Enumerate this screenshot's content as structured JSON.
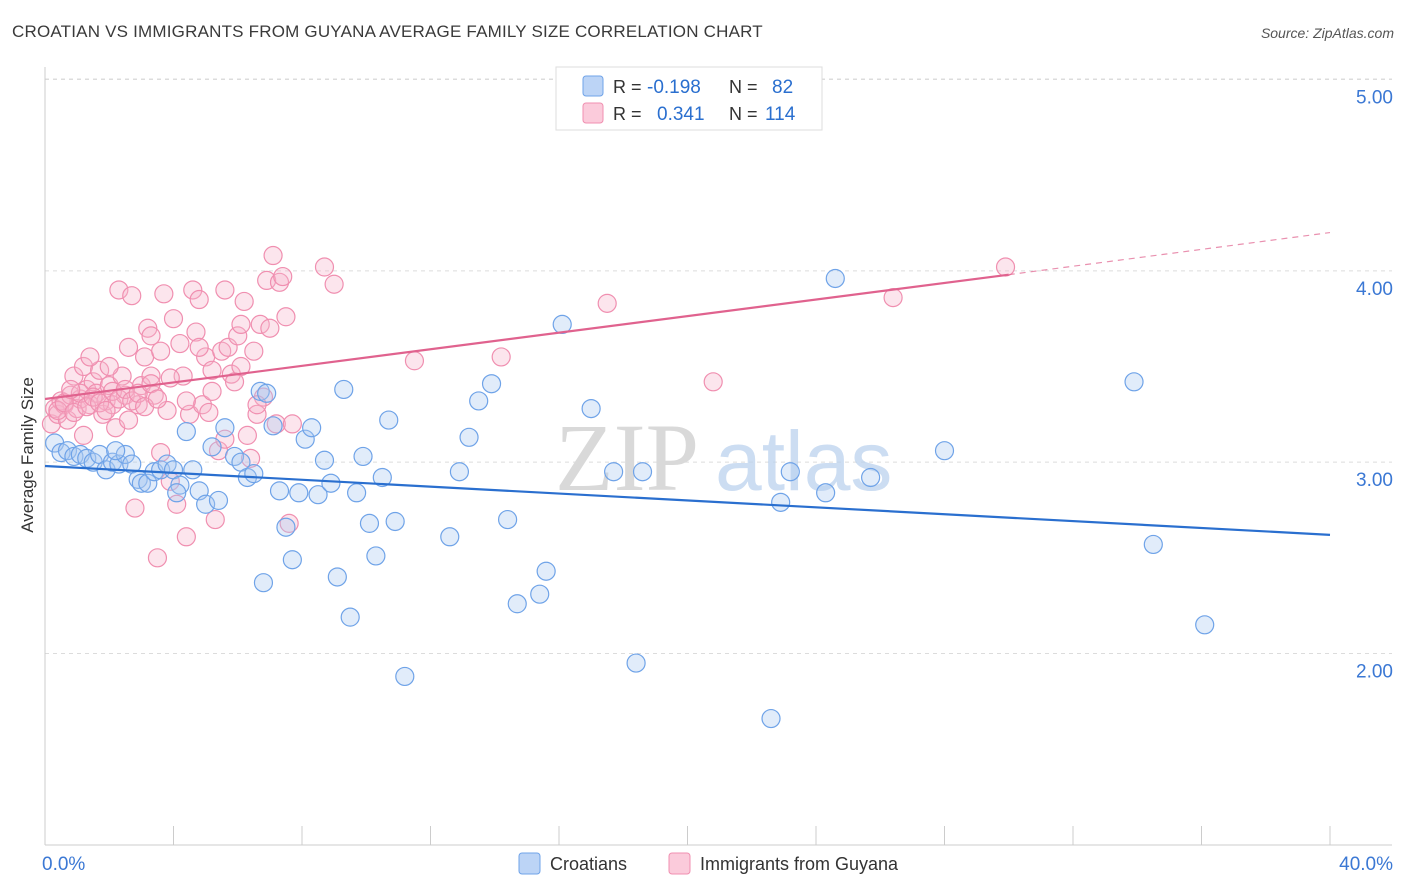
{
  "title": "CROATIAN VS IMMIGRANTS FROM GUYANA AVERAGE FAMILY SIZE CORRELATION CHART",
  "source": "Source: ZipAtlas.com",
  "watermark": {
    "zip": "ZIP",
    "atlas": "atlas"
  },
  "legend_box": {
    "rows": [
      {
        "r_label": "R = ",
        "r_value": "-0.198",
        "n_label": "N = ",
        "n_value": "82",
        "color": "#6fa3e8"
      },
      {
        "r_label": "R = ",
        "r_value": "0.341",
        "n_label": "N = ",
        "n_value": "114",
        "color": "#f08fb0"
      }
    ]
  },
  "chart_data": {
    "type": "scatter",
    "title": "CROATIAN VS IMMIGRANTS FROM GUYANA AVERAGE FAMILY SIZE CORRELATION CHART",
    "xlabel": "",
    "ylabel": "Average Family Size",
    "xlim": [
      0,
      40
    ],
    "ylim": [
      1.0,
      5.15
    ],
    "x_tick_labels": [
      "0.0%",
      "40.0%"
    ],
    "y_ticks": [
      2.0,
      3.0,
      4.0,
      5.0
    ],
    "y_tick_labels": [
      "2.00",
      "3.00",
      "4.00",
      "5.00"
    ],
    "grid": "horizontal dashed",
    "legend_position": "bottom",
    "series": [
      {
        "name": "Croatians",
        "color": "#6fa3e8",
        "line_color": "#2a6fcf",
        "trend": {
          "x": [
            0,
            40
          ],
          "y": [
            2.98,
            2.62
          ]
        },
        "points": [
          [
            0.3,
            3.1
          ],
          [
            0.5,
            3.05
          ],
          [
            0.7,
            3.06
          ],
          [
            0.9,
            3.03
          ],
          [
            1.1,
            3.04
          ],
          [
            1.3,
            3.02
          ],
          [
            1.5,
            3.0
          ],
          [
            1.7,
            3.04
          ],
          [
            1.9,
            2.96
          ],
          [
            2.1,
            3.0
          ],
          [
            2.3,
            2.99
          ],
          [
            2.5,
            3.04
          ],
          [
            2.7,
            2.99
          ],
          [
            2.9,
            2.91
          ],
          [
            3.0,
            2.89
          ],
          [
            3.2,
            2.89
          ],
          [
            3.4,
            2.95
          ],
          [
            3.6,
            2.96
          ],
          [
            3.8,
            2.99
          ],
          [
            4.0,
            2.96
          ],
          [
            4.2,
            2.88
          ],
          [
            4.4,
            3.16
          ],
          [
            4.6,
            2.96
          ],
          [
            4.8,
            2.85
          ],
          [
            5.0,
            2.78
          ],
          [
            5.2,
            3.08
          ],
          [
            5.4,
            2.8
          ],
          [
            5.6,
            3.18
          ],
          [
            5.9,
            3.03
          ],
          [
            6.1,
            3.0
          ],
          [
            6.3,
            2.92
          ],
          [
            6.5,
            2.94
          ],
          [
            6.7,
            3.37
          ],
          [
            6.9,
            3.36
          ],
          [
            7.1,
            3.19
          ],
          [
            7.3,
            2.85
          ],
          [
            7.5,
            2.66
          ],
          [
            7.7,
            2.49
          ],
          [
            7.9,
            2.84
          ],
          [
            8.1,
            3.12
          ],
          [
            8.3,
            3.18
          ],
          [
            8.5,
            2.83
          ],
          [
            8.7,
            3.01
          ],
          [
            8.9,
            2.89
          ],
          [
            9.1,
            2.4
          ],
          [
            9.3,
            3.38
          ],
          [
            9.5,
            2.19
          ],
          [
            9.7,
            2.84
          ],
          [
            9.9,
            3.03
          ],
          [
            10.1,
            2.68
          ],
          [
            10.3,
            2.51
          ],
          [
            10.5,
            2.92
          ],
          [
            10.7,
            3.22
          ],
          [
            10.9,
            2.69
          ],
          [
            11.2,
            1.88
          ],
          [
            12.6,
            2.61
          ],
          [
            12.9,
            2.95
          ],
          [
            13.2,
            3.13
          ],
          [
            13.5,
            3.32
          ],
          [
            13.9,
            3.41
          ],
          [
            14.4,
            2.7
          ],
          [
            14.7,
            2.26
          ],
          [
            15.4,
            2.31
          ],
          [
            15.6,
            2.43
          ],
          [
            16.1,
            3.72
          ],
          [
            17.0,
            3.28
          ],
          [
            17.7,
            2.95
          ],
          [
            18.4,
            1.95
          ],
          [
            18.6,
            2.95
          ],
          [
            22.6,
            1.66
          ],
          [
            22.9,
            2.79
          ],
          [
            23.2,
            2.95
          ],
          [
            24.3,
            2.84
          ],
          [
            24.6,
            3.96
          ],
          [
            25.7,
            2.92
          ],
          [
            28.0,
            3.06
          ],
          [
            33.9,
            3.42
          ],
          [
            34.5,
            2.57
          ],
          [
            36.1,
            2.15
          ],
          [
            6.8,
            2.37
          ],
          [
            4.1,
            2.84
          ],
          [
            2.2,
            3.06
          ]
        ]
      },
      {
        "name": "Immigrants from Guyana",
        "color": "#f08fb0",
        "line_color": "#e0628e",
        "trend": {
          "x": [
            0,
            30
          ],
          "y": [
            3.33,
            3.98
          ]
        },
        "trend_dashed": {
          "x": [
            30,
            40
          ],
          "y": [
            3.98,
            4.2
          ]
        },
        "points": [
          [
            0.2,
            3.2
          ],
          [
            0.3,
            3.28
          ],
          [
            0.4,
            3.25
          ],
          [
            0.5,
            3.32
          ],
          [
            0.6,
            3.3
          ],
          [
            0.7,
            3.22
          ],
          [
            0.8,
            3.35
          ],
          [
            0.9,
            3.45
          ],
          [
            1.0,
            3.28
          ],
          [
            1.1,
            3.33
          ],
          [
            1.2,
            3.5
          ],
          [
            1.3,
            3.38
          ],
          [
            1.4,
            3.3
          ],
          [
            1.5,
            3.42
          ],
          [
            1.6,
            3.36
          ],
          [
            1.7,
            3.48
          ],
          [
            1.8,
            3.25
          ],
          [
            1.9,
            3.32
          ],
          [
            2.0,
            3.4
          ],
          [
            2.1,
            3.3
          ],
          [
            2.2,
            3.18
          ],
          [
            2.3,
            3.9
          ],
          [
            2.4,
            3.45
          ],
          [
            2.5,
            3.35
          ],
          [
            2.6,
            3.6
          ],
          [
            2.7,
            3.87
          ],
          [
            2.8,
            2.76
          ],
          [
            2.9,
            3.3
          ],
          [
            3.0,
            3.4
          ],
          [
            3.1,
            3.55
          ],
          [
            3.2,
            3.7
          ],
          [
            3.3,
            3.45
          ],
          [
            3.4,
            3.35
          ],
          [
            3.5,
            2.5
          ],
          [
            3.6,
            3.58
          ],
          [
            3.7,
            3.88
          ],
          [
            3.8,
            3.27
          ],
          [
            3.9,
            2.9
          ],
          [
            4.0,
            3.75
          ],
          [
            4.1,
            2.78
          ],
          [
            4.2,
            3.62
          ],
          [
            4.3,
            3.45
          ],
          [
            4.4,
            2.61
          ],
          [
            4.5,
            3.25
          ],
          [
            4.6,
            3.9
          ],
          [
            4.7,
            3.68
          ],
          [
            4.8,
            3.85
          ],
          [
            4.9,
            3.3
          ],
          [
            5.0,
            3.55
          ],
          [
            5.1,
            3.26
          ],
          [
            5.2,
            3.37
          ],
          [
            5.3,
            2.7
          ],
          [
            5.4,
            3.06
          ],
          [
            5.5,
            3.58
          ],
          [
            5.6,
            3.9
          ],
          [
            5.7,
            3.6
          ],
          [
            5.8,
            3.46
          ],
          [
            5.9,
            3.42
          ],
          [
            6.0,
            3.66
          ],
          [
            6.1,
            3.72
          ],
          [
            6.2,
            3.84
          ],
          [
            6.3,
            3.14
          ],
          [
            6.4,
            3.02
          ],
          [
            6.5,
            3.58
          ],
          [
            6.6,
            3.25
          ],
          [
            6.7,
            3.72
          ],
          [
            6.8,
            3.34
          ],
          [
            6.9,
            3.95
          ],
          [
            7.0,
            3.7
          ],
          [
            7.1,
            4.08
          ],
          [
            7.2,
            3.2
          ],
          [
            7.3,
            3.94
          ],
          [
            7.4,
            3.97
          ],
          [
            7.5,
            3.76
          ],
          [
            7.6,
            2.68
          ],
          [
            7.7,
            3.2
          ],
          [
            8.7,
            4.02
          ],
          [
            9.0,
            3.93
          ],
          [
            11.5,
            3.53
          ],
          [
            14.2,
            3.55
          ],
          [
            17.5,
            3.83
          ],
          [
            20.8,
            3.42
          ],
          [
            26.4,
            3.86
          ],
          [
            29.9,
            4.02
          ],
          [
            0.4,
            3.27
          ],
          [
            0.6,
            3.31
          ],
          [
            0.9,
            3.26
          ],
          [
            1.1,
            3.36
          ],
          [
            1.3,
            3.29
          ],
          [
            1.5,
            3.34
          ],
          [
            1.7,
            3.31
          ],
          [
            1.9,
            3.27
          ],
          [
            2.1,
            3.37
          ],
          [
            2.3,
            3.33
          ],
          [
            2.5,
            3.38
          ],
          [
            2.7,
            3.32
          ],
          [
            2.9,
            3.36
          ],
          [
            3.1,
            3.29
          ],
          [
            3.3,
            3.41
          ],
          [
            3.5,
            3.33
          ],
          [
            3.9,
            3.44
          ],
          [
            4.4,
            3.32
          ],
          [
            5.2,
            3.48
          ],
          [
            6.1,
            3.5
          ],
          [
            2.0,
            3.5
          ],
          [
            1.4,
            3.55
          ],
          [
            3.3,
            3.66
          ],
          [
            4.8,
            3.6
          ],
          [
            0.8,
            3.38
          ],
          [
            2.6,
            3.22
          ],
          [
            1.2,
            3.14
          ],
          [
            3.6,
            3.05
          ],
          [
            5.6,
            3.12
          ],
          [
            6.6,
            3.3
          ]
        ]
      }
    ]
  }
}
